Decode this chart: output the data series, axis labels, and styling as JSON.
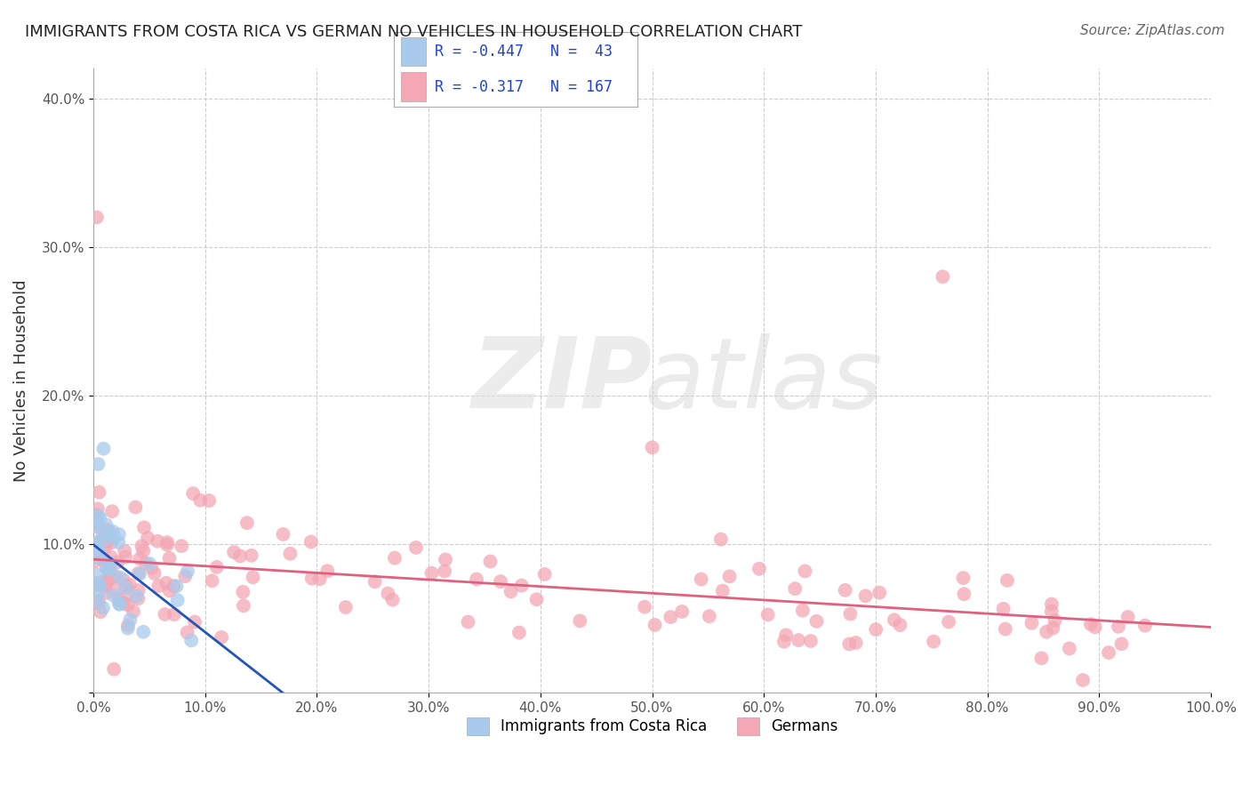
{
  "title": "IMMIGRANTS FROM COSTA RICA VS GERMAN NO VEHICLES IN HOUSEHOLD CORRELATION CHART",
  "source": "Source: ZipAtlas.com",
  "ylabel": "No Vehicles in Household",
  "xlim": [
    0.0,
    1.0
  ],
  "ylim": [
    0.0,
    0.42
  ],
  "xticklabels": [
    "0.0%",
    "10.0%",
    "20.0%",
    "30.0%",
    "40.0%",
    "50.0%",
    "60.0%",
    "70.0%",
    "80.0%",
    "90.0%",
    "100.0%"
  ],
  "yticks": [
    0.0,
    0.1,
    0.2,
    0.3,
    0.4
  ],
  "yticklabels": [
    "",
    "10.0%",
    "20.0%",
    "30.0%",
    "40.0%"
  ],
  "legend_r_blue": "-0.447",
  "legend_n_blue": "43",
  "legend_r_pink": "-0.317",
  "legend_n_pink": "167",
  "legend_label_blue": "Immigrants from Costa Rica",
  "legend_label_pink": "Germans",
  "color_blue": "#A8CAEC",
  "color_pink": "#F4A7B5",
  "color_blue_line": "#2255BB",
  "color_pink_line": "#E06080",
  "background_color": "#FFFFFF",
  "grid_color": "#CCCCCC"
}
